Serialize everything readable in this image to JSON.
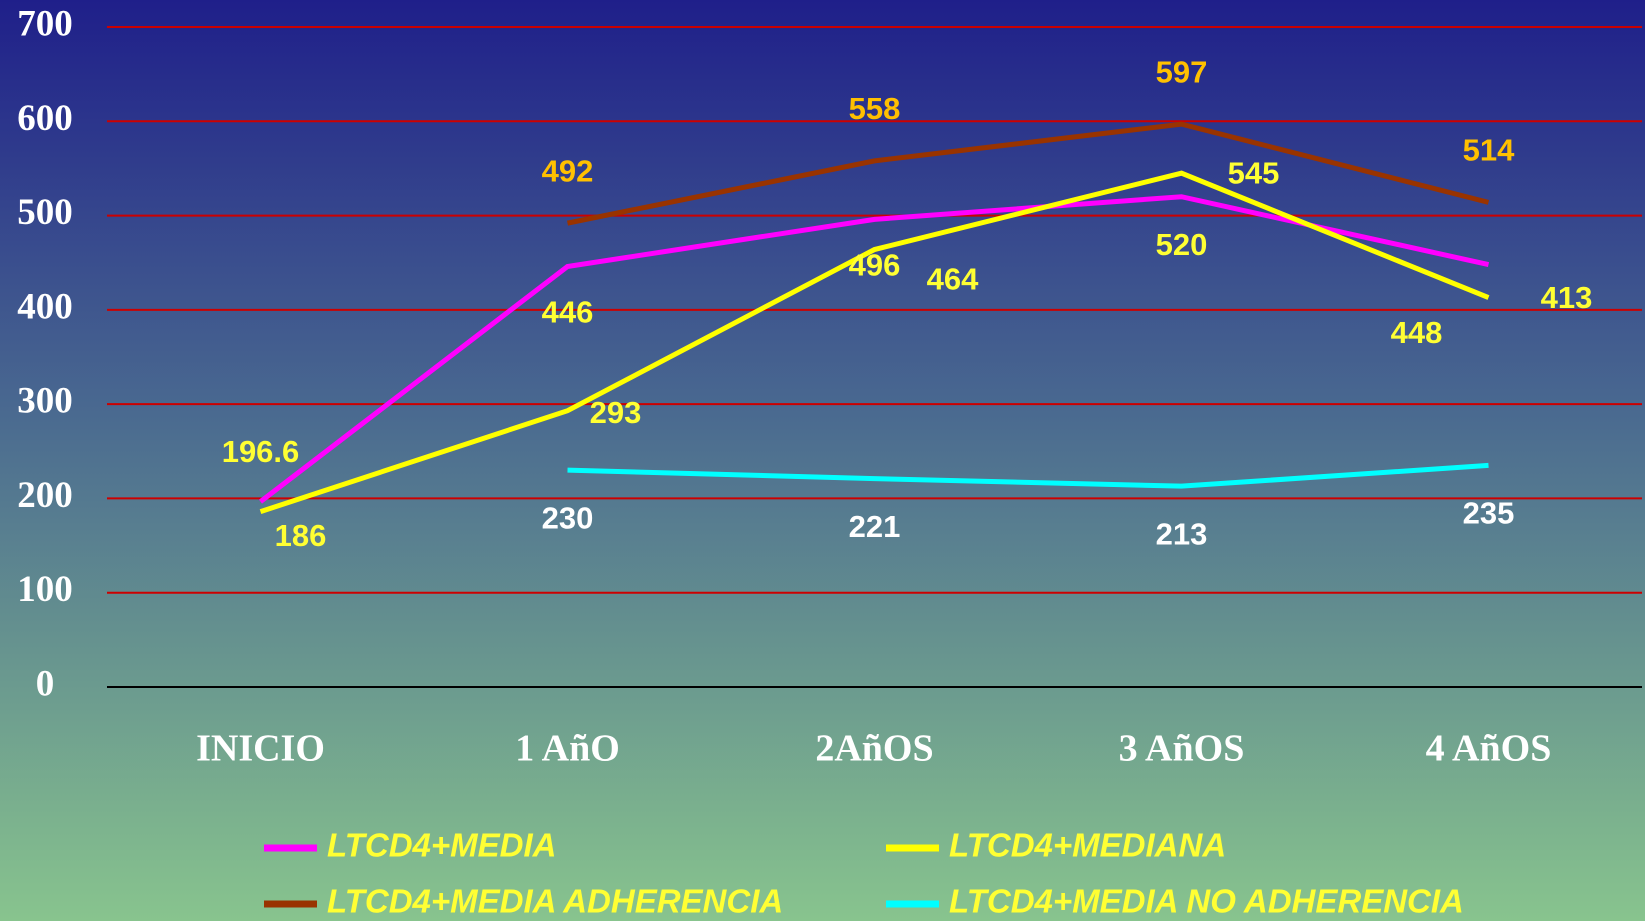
{
  "chart_data": {
    "type": "line",
    "categories": [
      "INICIO",
      "1 AñO",
      "2AñOS",
      "3 AñOS",
      "4 AñOS"
    ],
    "series": [
      {
        "name": "LTCD4+MEDIA",
        "color": "#ff00ff",
        "label_color": "#ffff33",
        "values": [
          196.6,
          446,
          496,
          520,
          448
        ]
      },
      {
        "name": "LTCD4+MEDIANA",
        "color": "#ffff00",
        "label_color": "#ffff33",
        "values": [
          186,
          293,
          464,
          545,
          413
        ]
      },
      {
        "name": "LTCD4+MEDIA ADHERENCIA",
        "color": "#993300",
        "label_color": "#ffc000",
        "values": [
          null,
          492,
          558,
          597,
          514
        ]
      },
      {
        "name": "LTCD4+MEDIA NO ADHERENCIA",
        "color": "#00ffff",
        "label_color": "#ffffff",
        "values": [
          null,
          230,
          221,
          213,
          235
        ]
      }
    ],
    "ylim": [
      0,
      700
    ],
    "yticks": [
      0,
      100,
      200,
      300,
      400,
      500,
      600,
      700
    ],
    "grid": true,
    "grid_color": "#cc0000",
    "axis_color": "#000000",
    "legend": "bottom"
  }
}
